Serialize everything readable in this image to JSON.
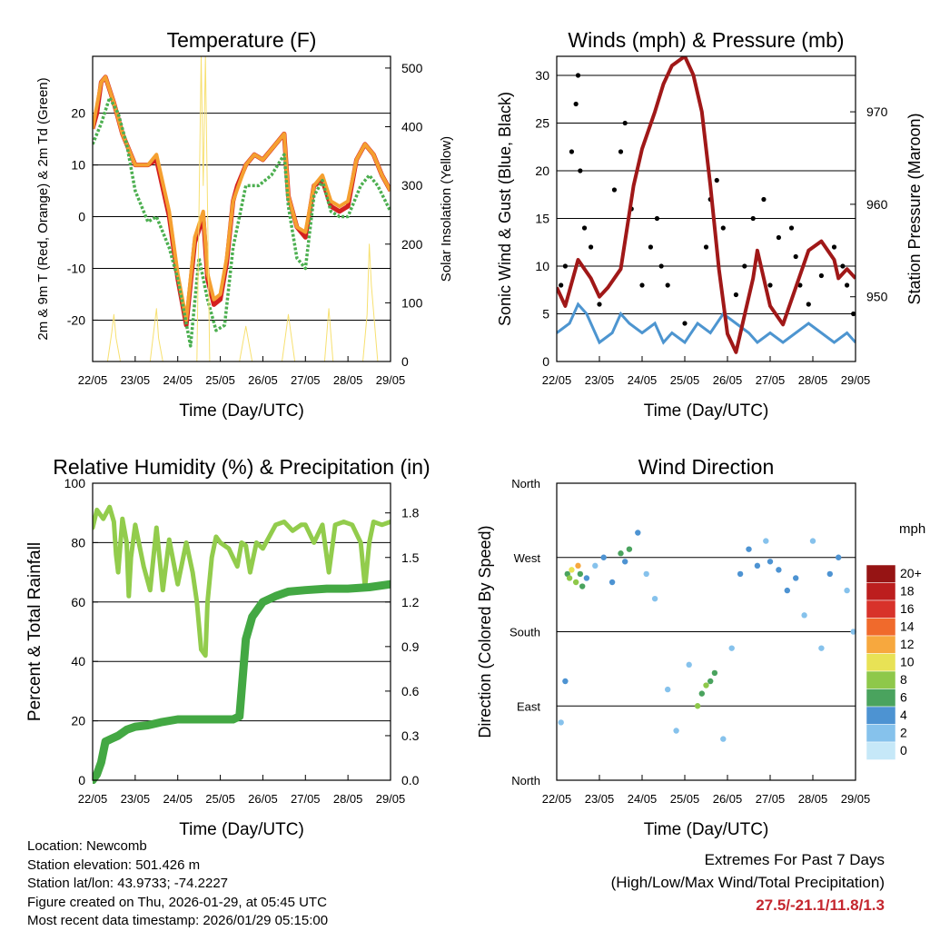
{
  "time_ticks": [
    "22/05",
    "23/05",
    "24/05",
    "25/05",
    "26/05",
    "27/05",
    "28/05",
    "29/05"
  ],
  "colors": {
    "red": "#d42020",
    "orange": "#f5a030",
    "green": "#4caf50",
    "yellow": "#f7e070",
    "blue": "#4d95d0",
    "black": "#000000",
    "maroon": "#a01818",
    "rh_green": "#92cc4c",
    "precip_green": "#43a843"
  },
  "wind_colorbar": {
    "unit": "mph",
    "labels": [
      "0",
      "2",
      "4",
      "6",
      "8",
      "10",
      "12",
      "14",
      "16",
      "18",
      "20+"
    ],
    "colors": [
      "#c6e8f8",
      "#86c2ec",
      "#4d93d2",
      "#4aa35e",
      "#8ec84a",
      "#e8e255",
      "#f7a83e",
      "#f06a2c",
      "#d8322a",
      "#bc1e1e",
      "#961414"
    ]
  },
  "chart_data": [
    {
      "id": "temperature",
      "type": "line",
      "title": "Temperature (F)",
      "xlabel": "Time (Day/UTC)",
      "ylabel": "2m & 9m T (Red, Orange) & 2m Td (Green)",
      "ylabel_right": "Solar Insolation (Yellow)",
      "xlim": [
        0,
        7
      ],
      "ylim": [
        -28,
        31
      ],
      "yticks": [
        -20,
        -10,
        0,
        10,
        20
      ],
      "ylim_right": [
        0,
        520
      ],
      "yticks_right": [
        0,
        100,
        200,
        300,
        400,
        500
      ],
      "series": [
        {
          "name": "2m T",
          "color": "red",
          "x": [
            0,
            0.1,
            0.2,
            0.3,
            0.5,
            0.7,
            1.0,
            1.3,
            1.5,
            1.8,
            2.0,
            2.2,
            2.4,
            2.6,
            2.7,
            2.85,
            3.0,
            3.15,
            3.3,
            3.4,
            3.6,
            3.8,
            4.0,
            4.3,
            4.5,
            4.6,
            4.8,
            5.0,
            5.2,
            5.4,
            5.6,
            5.8,
            6.0,
            6.2,
            6.4,
            6.6,
            6.8,
            7.0
          ],
          "y": [
            17,
            20,
            26,
            27,
            22,
            16,
            10,
            10,
            11,
            0,
            -12,
            -21,
            -5,
            0,
            -12,
            -17,
            -16,
            -9,
            3,
            6,
            10,
            12,
            11,
            14,
            16,
            4,
            -2,
            -4,
            6,
            7,
            2,
            1,
            2,
            11,
            14,
            12,
            8,
            5
          ]
        },
        {
          "name": "9m T",
          "color": "orange",
          "x": [
            0,
            0.2,
            0.3,
            0.5,
            0.7,
            1.0,
            1.3,
            1.5,
            1.8,
            2.0,
            2.2,
            2.4,
            2.6,
            2.7,
            2.85,
            3.0,
            3.15,
            3.3,
            3.6,
            3.8,
            4.0,
            4.3,
            4.5,
            4.6,
            4.8,
            5.0,
            5.2,
            5.4,
            5.6,
            5.8,
            6.0,
            6.2,
            6.4,
            6.6,
            6.8,
            7.0
          ],
          "y": [
            17,
            26,
            27,
            22,
            16,
            10,
            10,
            12,
            1,
            -11,
            -20,
            -4,
            1,
            -11,
            -16,
            -15,
            -8,
            3,
            10,
            12,
            11,
            14,
            16,
            4,
            -2,
            -3,
            6,
            8,
            3,
            2,
            3,
            11,
            14,
            12,
            8,
            5
          ]
        },
        {
          "name": "2m Td",
          "color": "green",
          "x": [
            0,
            0.2,
            0.4,
            0.6,
            0.8,
            1.0,
            1.3,
            1.5,
            1.8,
            2.0,
            2.3,
            2.5,
            2.7,
            2.9,
            3.1,
            3.3,
            3.6,
            3.9,
            4.2,
            4.5,
            4.6,
            4.8,
            5.0,
            5.2,
            5.4,
            5.6,
            5.8,
            6.0,
            6.3,
            6.5,
            6.7,
            7.0
          ],
          "y": [
            14,
            18,
            23,
            20,
            14,
            5,
            -1,
            0,
            -6,
            -12,
            -25,
            -8,
            -16,
            -22,
            -21,
            -6,
            6,
            6,
            8,
            12,
            2,
            -8,
            -10,
            4,
            7,
            1,
            0,
            0,
            6,
            8,
            6,
            1
          ]
        },
        {
          "name": "Solar Insolation",
          "color": "yellow",
          "axis": "right",
          "x": [
            0,
            0.35,
            0.45,
            0.5,
            0.55,
            0.65,
            1.0,
            1.35,
            1.5,
            1.55,
            1.65,
            2.0,
            2.45,
            2.55,
            2.6,
            2.65,
            2.75,
            3.0,
            3.45,
            3.6,
            3.75,
            4.0,
            4.45,
            4.6,
            4.75,
            5.0,
            5.45,
            5.55,
            5.65,
            6.0,
            6.35,
            6.45,
            6.5,
            6.55,
            6.7,
            7.0
          ],
          "y": [
            0,
            0,
            50,
            80,
            40,
            0,
            0,
            0,
            90,
            40,
            0,
            0,
            0,
            520,
            300,
            520,
            0,
            0,
            0,
            60,
            0,
            0,
            0,
            80,
            0,
            0,
            0,
            90,
            0,
            0,
            0,
            80,
            200,
            130,
            0,
            0
          ]
        }
      ]
    },
    {
      "id": "winds",
      "type": "scatter",
      "title": "Winds (mph) & Pressure (mb)",
      "xlabel": "Time (Day/UTC)",
      "ylabel": "Sonic Wind & Gust (Blue, Black)",
      "ylabel_right": "Station Pressure (Maroon)",
      "xlim": [
        0,
        7
      ],
      "ylim": [
        0,
        32
      ],
      "yticks": [
        0,
        5,
        10,
        15,
        20,
        25,
        30
      ],
      "ylim_right": [
        943,
        976
      ],
      "yticks_right": [
        950,
        960,
        970
      ],
      "series": [
        {
          "name": "Sonic Wind",
          "color": "blue",
          "x": [
            0,
            0.3,
            0.5,
            0.7,
            1.0,
            1.3,
            1.5,
            1.7,
            2.0,
            2.3,
            2.5,
            2.7,
            3.0,
            3.3,
            3.6,
            3.9,
            4.2,
            4.5,
            4.7,
            5.0,
            5.3,
            5.6,
            5.9,
            6.2,
            6.5,
            6.8,
            7.0
          ],
          "y": [
            3,
            4,
            6,
            5,
            2,
            3,
            5,
            4,
            3,
            4,
            2,
            3,
            2,
            4,
            3,
            5,
            4,
            3,
            2,
            3,
            2,
            3,
            4,
            3,
            2,
            3,
            2
          ]
        },
        {
          "name": "Gust",
          "color": "black",
          "x": [
            0.1,
            0.2,
            0.35,
            0.45,
            0.5,
            0.55,
            0.65,
            0.8,
            1.0,
            1.35,
            1.5,
            1.6,
            1.75,
            2.0,
            2.2,
            2.35,
            2.45,
            2.6,
            3.0,
            3.5,
            3.6,
            3.75,
            3.9,
            4.2,
            4.4,
            4.6,
            4.85,
            5.0,
            5.2,
            5.5,
            5.6,
            5.7,
            5.9,
            6.2,
            6.5,
            6.7,
            6.8,
            6.95
          ],
          "y": [
            8,
            10,
            22,
            27,
            30,
            20,
            14,
            12,
            6,
            18,
            22,
            25,
            16,
            8,
            12,
            15,
            10,
            8,
            4,
            12,
            17,
            19,
            14,
            7,
            10,
            15,
            17,
            8,
            13,
            14,
            11,
            8,
            6,
            9,
            12,
            10,
            8,
            5
          ]
        },
        {
          "name": "Station Pressure",
          "color": "maroon",
          "axis": "right",
          "x": [
            0,
            0.2,
            0.5,
            0.8,
            1.0,
            1.2,
            1.5,
            1.8,
            2.0,
            2.3,
            2.5,
            2.7,
            3.0,
            3.2,
            3.4,
            3.6,
            3.8,
            4.0,
            4.2,
            4.4,
            4.6,
            4.7,
            5.0,
            5.3,
            5.6,
            5.9,
            6.2,
            6.5,
            6.6,
            6.8,
            7.0
          ],
          "y": [
            951,
            949,
            954,
            952,
            950,
            951,
            953,
            962,
            966,
            970,
            973,
            975,
            976,
            974,
            970,
            962,
            953,
            946,
            944,
            948,
            952,
            955,
            949,
            947,
            951,
            955,
            956,
            954,
            952,
            953,
            952
          ]
        }
      ]
    },
    {
      "id": "humidity",
      "type": "line",
      "title": "Relative Humidity (%) & Precipitation (in)",
      "xlabel": "Time (Day/UTC)",
      "ylabel": "Percent & Total Rainfall",
      "xlim": [
        0,
        7
      ],
      "ylim": [
        0,
        100
      ],
      "yticks": [
        0,
        20,
        40,
        60,
        80,
        100
      ],
      "ylim_right": [
        0,
        2.0
      ],
      "yticks_right": [
        "0.0",
        "0.3",
        "0.6",
        "0.9",
        "1.2",
        "1.5",
        "1.8"
      ],
      "yticks_right_values": [
        0,
        0.3,
        0.6,
        0.9,
        1.2,
        1.5,
        1.8
      ],
      "series": [
        {
          "name": "Relative Humidity",
          "color": "rh_green",
          "x": [
            0,
            0.1,
            0.25,
            0.4,
            0.5,
            0.55,
            0.6,
            0.7,
            0.8,
            0.85,
            0.9,
            1.0,
            1.2,
            1.35,
            1.5,
            1.65,
            1.8,
            2.0,
            2.2,
            2.35,
            2.45,
            2.55,
            2.65,
            2.7,
            2.8,
            2.9,
            3.0,
            3.2,
            3.4,
            3.5,
            3.6,
            3.7,
            3.85,
            4.0,
            4.3,
            4.5,
            4.7,
            4.9,
            5.0,
            5.2,
            5.4,
            5.55,
            5.7,
            5.9,
            6.1,
            6.3,
            6.4,
            6.5,
            6.6,
            6.8,
            7.0
          ],
          "y": [
            85,
            91,
            88,
            92,
            87,
            76,
            70,
            88,
            80,
            62,
            75,
            86,
            72,
            64,
            85,
            64,
            81,
            66,
            80,
            70,
            60,
            44,
            42,
            60,
            75,
            82,
            80,
            78,
            72,
            80,
            79,
            70,
            80,
            78,
            86,
            87,
            84,
            86,
            86,
            80,
            86,
            70,
            86,
            87,
            86,
            80,
            65,
            80,
            87,
            86,
            87
          ]
        },
        {
          "name": "Total Precipitation",
          "color": "precip_green",
          "axis": "right",
          "x": [
            0,
            0.1,
            0.2,
            0.3,
            0.45,
            0.6,
            0.8,
            1.0,
            1.3,
            1.6,
            2.0,
            2.5,
            3.0,
            3.3,
            3.45,
            3.6,
            3.75,
            4.0,
            4.3,
            4.6,
            5.0,
            5.5,
            6.0,
            6.5,
            7.0
          ],
          "y": [
            0,
            0.04,
            0.12,
            0.26,
            0.28,
            0.3,
            0.34,
            0.36,
            0.37,
            0.39,
            0.41,
            0.41,
            0.41,
            0.41,
            0.43,
            0.95,
            1.1,
            1.2,
            1.24,
            1.27,
            1.28,
            1.29,
            1.29,
            1.3,
            1.32
          ]
        }
      ]
    },
    {
      "id": "wind_direction",
      "type": "scatter",
      "title": "Wind Direction",
      "xlabel": "Time (Day/UTC)",
      "ylabel": "Direction (Colored By Speed)",
      "xlim": [
        0,
        7
      ],
      "ylim": [
        0,
        360
      ],
      "ytick_labels": [
        "North",
        "East",
        "South",
        "West",
        "North"
      ],
      "ytick_values": [
        0,
        90,
        180,
        270,
        360
      ],
      "series": [
        {
          "name": "Direction",
          "x": [
            0.1,
            0.2,
            0.25,
            0.3,
            0.35,
            0.45,
            0.5,
            0.55,
            0.6,
            0.7,
            0.9,
            1.1,
            1.3,
            1.5,
            1.6,
            1.7,
            1.9,
            2.1,
            2.3,
            2.6,
            2.8,
            3.1,
            3.3,
            3.4,
            3.5,
            3.6,
            3.7,
            3.9,
            4.1,
            4.3,
            4.5,
            4.7,
            4.9,
            5.0,
            5.2,
            5.4,
            5.6,
            5.8,
            6.0,
            6.2,
            6.4,
            6.6,
            6.8,
            6.95
          ],
          "y": [
            70,
            120,
            250,
            245,
            255,
            240,
            260,
            250,
            235,
            245,
            260,
            270,
            240,
            275,
            265,
            280,
            300,
            250,
            220,
            110,
            60,
            140,
            90,
            105,
            115,
            120,
            130,
            50,
            160,
            250,
            280,
            260,
            290,
            265,
            255,
            230,
            245,
            200,
            290,
            160,
            250,
            270,
            230,
            180
          ],
          "speed": [
            2,
            3,
            6,
            8,
            10,
            7,
            12,
            6,
            5,
            4,
            2,
            3,
            4,
            6,
            4,
            5,
            3,
            2,
            2,
            1,
            1,
            2,
            7,
            6,
            8,
            5,
            6,
            1,
            2,
            3,
            4,
            3,
            2,
            4,
            3,
            4,
            3,
            1,
            2,
            2,
            3,
            3,
            2,
            1
          ]
        }
      ]
    }
  ],
  "info": {
    "location": "Location: Newcomb",
    "elevation": "Station elevation: 501.426 m",
    "latlon": "Station lat/lon: 43.9733; -74.2227",
    "created": "Figure created on Thu, 2026-01-29, at 05:45 UTC",
    "recent": "Most recent data timestamp: 2026/01/29 05:15:00"
  },
  "extremes": {
    "title": "Extremes For Past 7 Days",
    "subtitle": "(High/Low/Max Wind/Total Precipitation)",
    "values": "27.5/-21.1/11.8/1.3"
  }
}
